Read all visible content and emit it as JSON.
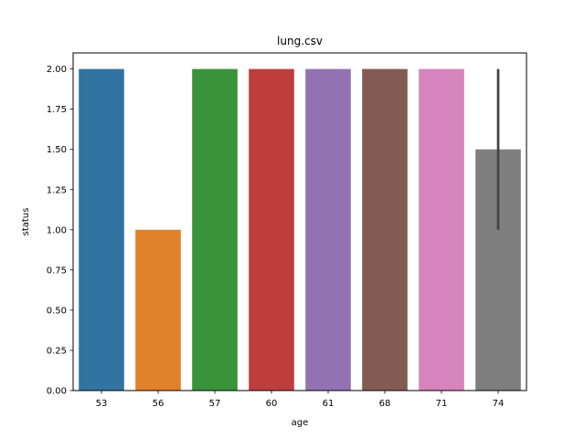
{
  "chart_data": {
    "type": "bar",
    "title": "lung.csv",
    "xlabel": "age",
    "ylabel": "status",
    "categories": [
      "53",
      "56",
      "57",
      "60",
      "61",
      "68",
      "71",
      "74"
    ],
    "values": [
      2.0,
      1.0,
      2.0,
      2.0,
      2.0,
      2.0,
      2.0,
      1.5
    ],
    "error_bars": [
      null,
      null,
      null,
      null,
      null,
      null,
      null,
      [
        1.0,
        2.0
      ]
    ],
    "ylim": [
      0,
      2.1
    ],
    "yticks": [
      0.0,
      0.25,
      0.5,
      0.75,
      1.0,
      1.25,
      1.5,
      1.75,
      2.0
    ],
    "ytick_labels": [
      "0.00",
      "0.25",
      "0.50",
      "0.75",
      "1.00",
      "1.25",
      "1.50",
      "1.75",
      "2.00"
    ],
    "grid": false,
    "legend": false,
    "colors": [
      "#3274a1",
      "#e1812c",
      "#3a923a",
      "#c03d3e",
      "#9372b2",
      "#845b53",
      "#d684bd",
      "#7f7f7f"
    ],
    "error_color": "#424242"
  }
}
